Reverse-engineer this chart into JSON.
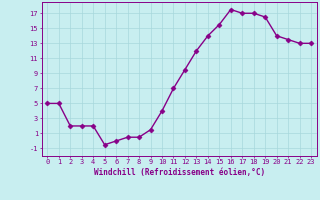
{
  "x": [
    0,
    1,
    2,
    3,
    4,
    5,
    6,
    7,
    8,
    9,
    10,
    11,
    12,
    13,
    14,
    15,
    16,
    17,
    18,
    19,
    20,
    21,
    22,
    23
  ],
  "y": [
    5,
    5,
    2,
    2,
    2,
    -0.5,
    0,
    0.5,
    0.5,
    1.5,
    4,
    7,
    9.5,
    12,
    14,
    15.5,
    17.5,
    17,
    17,
    16.5,
    14,
    13.5,
    13,
    13
  ],
  "line_color": "#880088",
  "marker": "D",
  "marker_size": 2.5,
  "xlabel": "Windchill (Refroidissement éolien,°C)",
  "xlabel_color": "#880088",
  "ylabel_ticks": [
    -1,
    1,
    3,
    5,
    7,
    9,
    11,
    13,
    15,
    17
  ],
  "ytick_labels": [
    "-1",
    "1",
    "3",
    "5",
    "7",
    "9",
    "11",
    "13",
    "15",
    "17"
  ],
  "xtick_labels": [
    "0",
    "1",
    "2",
    "3",
    "4",
    "5",
    "6",
    "7",
    "8",
    "9",
    "10",
    "11",
    "12",
    "13",
    "14",
    "15",
    "16",
    "17",
    "18",
    "19",
    "20",
    "21",
    "22",
    "23"
  ],
  "ylim": [
    -2.0,
    18.5
  ],
  "xlim": [
    -0.5,
    23.5
  ],
  "bg_color": "#c8eef0",
  "grid_color": "#a8d8dc",
  "tick_color": "#880088",
  "label_fontsize": 5.5,
  "tick_fontsize": 5.0,
  "linewidth": 1.0
}
